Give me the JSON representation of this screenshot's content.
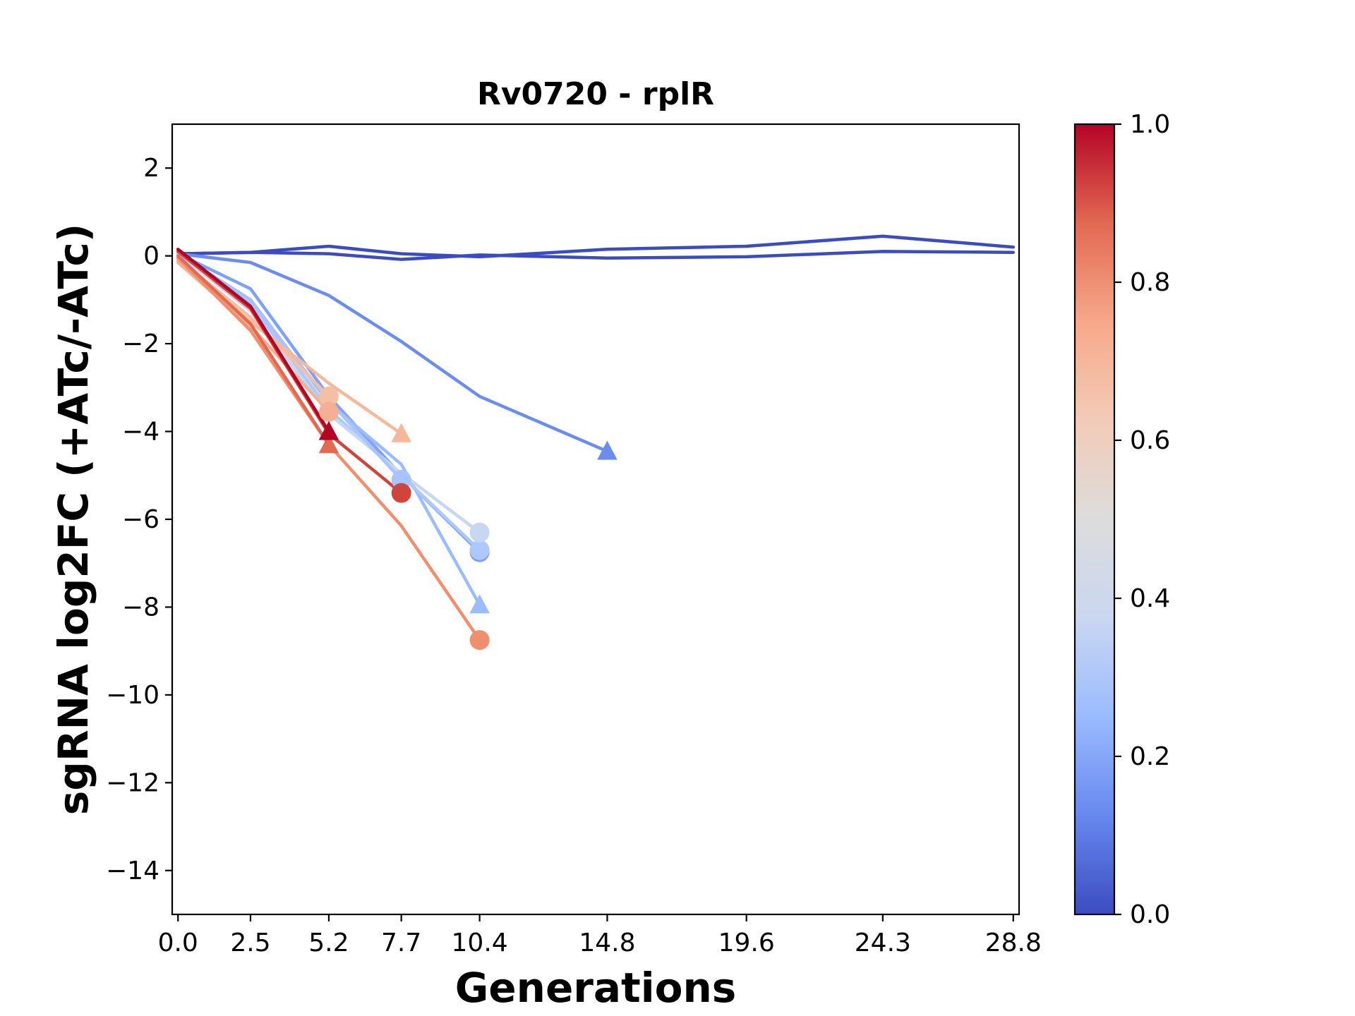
{
  "chart_data": {
    "type": "line",
    "title": "Rv0720 - rplR",
    "xlabel": "Generations",
    "ylabel": "sgRNA log2FC (+ATc/-ATc)",
    "xlim": [
      -0.2,
      29.0
    ],
    "ylim": [
      -15,
      3
    ],
    "x_ticks": [
      0.0,
      2.5,
      5.2,
      7.7,
      10.4,
      14.8,
      19.6,
      24.3,
      28.8
    ],
    "x_tick_labels": [
      "0.0",
      "2.5",
      "5.2",
      "7.7",
      "10.4",
      "14.8",
      "19.6",
      "24.3",
      "28.8"
    ],
    "y_ticks": [
      2,
      0,
      -2,
      -4,
      -6,
      -8,
      -10,
      -12,
      -14
    ],
    "y_tick_labels": [
      "2",
      "0",
      "−2",
      "−4",
      "−6",
      "−8",
      "−10",
      "−12",
      "−14"
    ],
    "grid": false,
    "colorbar": {
      "range": [
        0.0,
        1.0
      ],
      "ticks": [
        0.0,
        0.2,
        0.4,
        0.6,
        0.8,
        1.0
      ],
      "tick_labels": [
        "0.0",
        "0.2",
        "0.4",
        "0.6",
        "0.8",
        "1.0"
      ],
      "colormap": "coolwarm",
      "colors": [
        "#3b4cc0",
        "#6788ee",
        "#9abbff",
        "#c9d7f0",
        "#dddcdc",
        "#f2cbb7",
        "#f7a889",
        "#e26952",
        "#b40426"
      ]
    },
    "series": [
      {
        "color": "#3b4cc0",
        "x": [
          0.0,
          2.5,
          5.2,
          7.7,
          10.4,
          14.8,
          19.6,
          24.3,
          28.8
        ],
        "values": [
          0.05,
          0.08,
          0.22,
          0.05,
          -0.02,
          0.15,
          0.22,
          0.45,
          0.2
        ],
        "marker": "none"
      },
      {
        "color": "#3b4cc0",
        "x": [
          0.0,
          2.5,
          5.2,
          7.7,
          10.4,
          14.8,
          19.6,
          24.3,
          28.8
        ],
        "values": [
          0.05,
          0.08,
          0.05,
          -0.08,
          0.02,
          -0.05,
          -0.02,
          0.1,
          0.08
        ],
        "marker": "none"
      },
      {
        "color": "#6b8df0",
        "x": [
          0.0,
          2.5,
          5.2,
          7.7,
          10.4,
          14.8
        ],
        "values": [
          0.05,
          -0.15,
          -0.9,
          -1.95,
          -3.2,
          -4.45
        ],
        "marker": "triangle"
      },
      {
        "color": "#7fa1f7",
        "x": [
          0.0,
          2.5,
          5.2,
          7.7,
          10.4
        ],
        "values": [
          0.05,
          -0.75,
          -3.2,
          -5.0,
          -6.75
        ],
        "marker": "circle"
      },
      {
        "color": "#9bbcff",
        "x": [
          0.0,
          2.5,
          5.2,
          7.7,
          10.4
        ],
        "values": [
          0.05,
          -1.0,
          -3.35,
          -4.75,
          -7.95
        ],
        "marker": "triangle"
      },
      {
        "color": "#adc8fd",
        "x": [
          0.0,
          2.5,
          5.2,
          7.7,
          10.4
        ],
        "values": [
          0.05,
          -1.1,
          -3.5,
          -5.0,
          -6.7
        ],
        "marker": "circle"
      },
      {
        "color": "#c7d7f0",
        "x": [
          0.0,
          2.5,
          5.2,
          7.7,
          10.4
        ],
        "values": [
          0.05,
          -1.25,
          -3.6,
          -4.95,
          -6.3
        ],
        "marker": "circle"
      },
      {
        "color": "#a8c3fd",
        "x": [
          0.0,
          2.5,
          5.2,
          7.7
        ],
        "values": [
          0.05,
          -1.05,
          -3.3,
          -5.1
        ],
        "marker": "circle"
      },
      {
        "color": "#f3c0a6",
        "x": [
          0.0,
          2.5,
          5.2
        ],
        "values": [
          -0.05,
          -1.4,
          -3.2
        ],
        "marker": "circle"
      },
      {
        "color": "#f5b89b",
        "x": [
          0.0,
          2.5,
          5.2,
          7.7
        ],
        "values": [
          -0.1,
          -1.5,
          -2.9,
          -4.05
        ],
        "marker": "triangle"
      },
      {
        "color": "#f4b093",
        "x": [
          0.0,
          2.5,
          5.2
        ],
        "values": [
          -0.15,
          -1.6,
          -3.55
        ],
        "marker": "circle"
      },
      {
        "color": "#ef8f6e",
        "x": [
          0.0,
          2.5,
          5.2,
          7.7,
          10.4
        ],
        "values": [
          -0.05,
          -1.7,
          -4.3,
          -6.15,
          -8.75
        ],
        "marker": "circle"
      },
      {
        "color": "#e26952",
        "x": [
          0.0,
          2.5,
          5.2
        ],
        "values": [
          0.0,
          -1.55,
          -4.3
        ],
        "marker": "triangle"
      },
      {
        "color": "#cf453c",
        "x": [
          0.0,
          2.5,
          5.2,
          7.7
        ],
        "values": [
          0.1,
          -1.2,
          -4.05,
          -5.4
        ],
        "marker": "circle"
      },
      {
        "color": "#b40426",
        "x": [
          0.0,
          2.5,
          5.2
        ],
        "values": [
          0.15,
          -1.15,
          -4.0
        ],
        "marker": "triangle"
      }
    ]
  }
}
